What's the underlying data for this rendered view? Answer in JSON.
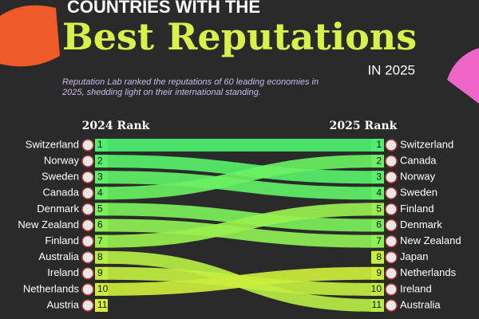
{
  "chart_data": {
    "type": "bump",
    "kicker": "COUNTRIES WITH THE",
    "title": "Best Reputations",
    "title_suffix": "IN 2025",
    "subtitle": "Reputation Lab ranked the reputations of 60 leading economies in 2025, shedding light on their international standing.",
    "categories": [
      "2024 Rank",
      "2025 Rank"
    ],
    "series": [
      {
        "name": "Switzerland",
        "color": "#4cf06e",
        "values": [
          1,
          1
        ]
      },
      {
        "name": "Norway",
        "color": "#56f06a",
        "values": [
          2,
          3
        ]
      },
      {
        "name": "Sweden",
        "color": "#60f066",
        "values": [
          3,
          4
        ]
      },
      {
        "name": "Canada",
        "color": "#6af062",
        "values": [
          4,
          2
        ]
      },
      {
        "name": "Denmark",
        "color": "#7cf05a",
        "values": [
          5,
          6
        ]
      },
      {
        "name": "New Zealand",
        "color": "#8ef052",
        "values": [
          6,
          7
        ]
      },
      {
        "name": "Finland",
        "color": "#98f04e",
        "values": [
          7,
          5
        ]
      },
      {
        "name": "Australia",
        "color": "#b6ee44",
        "values": [
          8,
          11
        ]
      },
      {
        "name": "Ireland",
        "color": "#c2ee40",
        "values": [
          9,
          10
        ]
      },
      {
        "name": "Netherlands",
        "color": "#ccee3c",
        "values": [
          10,
          9
        ]
      },
      {
        "name": "Austria",
        "color": "#d6ee38",
        "values": [
          11,
          null
        ]
      },
      {
        "name": "Japan",
        "color": "#c8ee3e",
        "values": [
          null,
          8
        ]
      }
    ]
  }
}
